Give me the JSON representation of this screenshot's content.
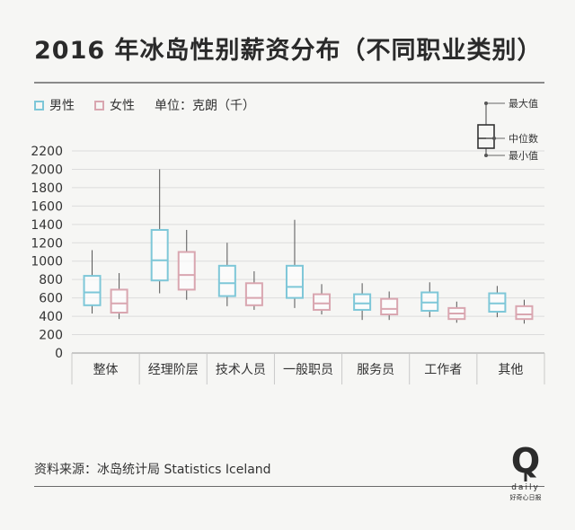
{
  "title": "2016 年冰岛性别薪资分布（不同职业类别）",
  "legend": {
    "male_label": "男性",
    "female_label": "女性",
    "unit": "单位：克朗（千）"
  },
  "key": {
    "max_label": "最大值",
    "median_label": "中位数",
    "min_label": "最小值"
  },
  "source": "资料来源：冰岛统计局 Statistics Iceland",
  "logo": {
    "letter": "Q",
    "word": "daily",
    "tagline": "好奇心日报"
  },
  "colors": {
    "male": "#7ec7d8",
    "female": "#d9a6b0",
    "text": "#2b2b2b",
    "grid": "#dcdcdc"
  },
  "chart_data": {
    "type": "boxplot",
    "categories": [
      "整体",
      "经理阶层",
      "技术人员",
      "一般职员",
      "服务员",
      "工作者",
      "其他"
    ],
    "ylim": [
      0,
      2200
    ],
    "yticks": [
      0,
      200,
      400,
      600,
      800,
      1000,
      1200,
      1400,
      1600,
      1800,
      2000,
      2200
    ],
    "grid": true,
    "series": [
      {
        "name": "男性",
        "color": "#7ec7d8",
        "boxes": [
          {
            "min": 430,
            "q1": 520,
            "median": 660,
            "q3": 840,
            "max": 1120
          },
          {
            "min": 650,
            "q1": 790,
            "median": 1010,
            "q3": 1340,
            "max": 2000
          },
          {
            "min": 510,
            "q1": 620,
            "median": 760,
            "q3": 950,
            "max": 1200
          },
          {
            "min": 490,
            "q1": 600,
            "median": 720,
            "q3": 950,
            "max": 1450
          },
          {
            "min": 360,
            "q1": 470,
            "median": 540,
            "q3": 640,
            "max": 760
          },
          {
            "min": 390,
            "q1": 460,
            "median": 550,
            "q3": 660,
            "max": 770
          },
          {
            "min": 390,
            "q1": 450,
            "median": 540,
            "q3": 650,
            "max": 730
          }
        ]
      },
      {
        "name": "女性",
        "color": "#d9a6b0",
        "boxes": [
          {
            "min": 370,
            "q1": 440,
            "median": 540,
            "q3": 690,
            "max": 870
          },
          {
            "min": 580,
            "q1": 690,
            "median": 850,
            "q3": 1100,
            "max": 1340
          },
          {
            "min": 470,
            "q1": 520,
            "median": 600,
            "q3": 760,
            "max": 890
          },
          {
            "min": 420,
            "q1": 470,
            "median": 540,
            "q3": 640,
            "max": 750
          },
          {
            "min": 360,
            "q1": 420,
            "median": 480,
            "q3": 590,
            "max": 670
          },
          {
            "min": 330,
            "q1": 370,
            "median": 430,
            "q3": 490,
            "max": 560
          },
          {
            "min": 320,
            "q1": 370,
            "median": 420,
            "q3": 510,
            "max": 580
          }
        ]
      }
    ]
  }
}
